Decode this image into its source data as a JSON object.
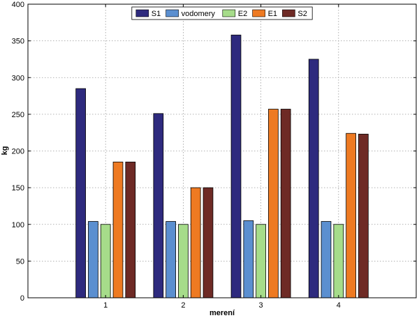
{
  "chart_data": {
    "type": "bar",
    "xlabel": "merení",
    "ylabel": "kg",
    "categories": [
      "1",
      "2",
      "3",
      "4"
    ],
    "ylim": [
      0,
      400
    ],
    "yticks": [
      0,
      50,
      100,
      150,
      200,
      250,
      300,
      350,
      400
    ],
    "grid": true,
    "legend_position": "top-center",
    "series": [
      {
        "name": "S1",
        "color": "#2e2a7e",
        "values": [
          285,
          251,
          358,
          325
        ]
      },
      {
        "name": "vodomery",
        "color": "#5b8fd0",
        "values": [
          104,
          104,
          105,
          104
        ]
      },
      {
        "name": "E2",
        "color": "#a6dc8a",
        "values": [
          100,
          100,
          100,
          100
        ]
      },
      {
        "name": "E1",
        "color": "#ee7a22",
        "values": [
          185,
          150,
          257,
          224
        ]
      },
      {
        "name": "S2",
        "color": "#6e2a25",
        "values": [
          185,
          150,
          257,
          223
        ]
      }
    ]
  }
}
